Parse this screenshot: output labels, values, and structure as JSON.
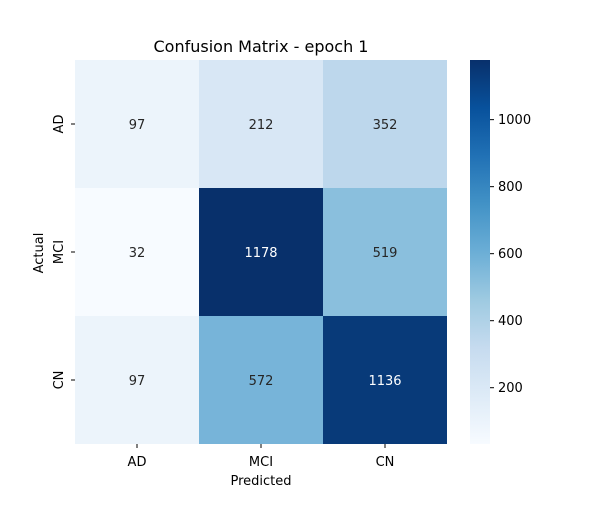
{
  "chart_data": {
    "type": "heatmap",
    "title": "Confusion Matrix - epoch 1",
    "xlabel": "Predicted",
    "ylabel": "Actual",
    "x_categories": [
      "AD",
      "MCI",
      "CN"
    ],
    "y_categories": [
      "AD",
      "MCI",
      "CN"
    ],
    "values": [
      [
        97,
        212,
        352
      ],
      [
        32,
        1178,
        519
      ],
      [
        97,
        572,
        1136
      ]
    ],
    "colormap": "Blues",
    "colorbar": {
      "ticks": [
        200,
        400,
        600,
        800,
        1000
      ],
      "min": 32,
      "max": 1178
    }
  }
}
